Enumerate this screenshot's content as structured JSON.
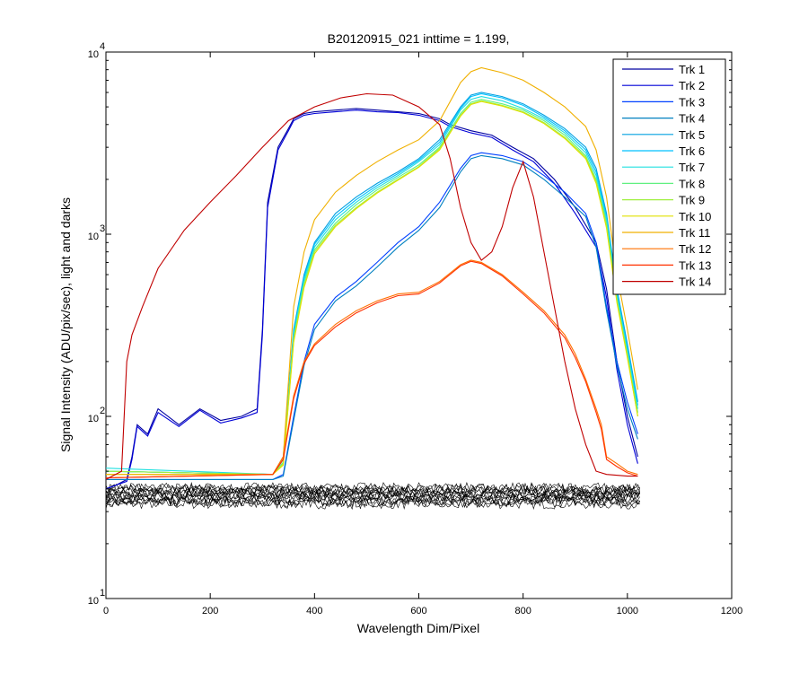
{
  "chart_data": {
    "type": "line",
    "title": "B20120915_021 inttime = 1.199,",
    "xlabel": "Wavelength Dim/Pixel",
    "ylabel": "Signal Intensity (ADU/pix/sec), light and darks",
    "xlim": [
      0,
      1200
    ],
    "ylim": [
      10,
      10000
    ],
    "yscale": "log",
    "grid": false,
    "legend_position": "top-right",
    "x_ticks": [
      "0",
      "200",
      "400",
      "600",
      "800",
      "1000",
      "1200"
    ],
    "y_ticks": [
      {
        "base": "10",
        "exp": "1"
      },
      {
        "base": "10",
        "exp": "2"
      },
      {
        "base": "10",
        "exp": "3"
      },
      {
        "base": "10",
        "exp": "4"
      }
    ],
    "series": [
      {
        "name": "Trk 1",
        "color": "#0000a0",
        "x": [
          0,
          20,
          40,
          50,
          60,
          80,
          100,
          140,
          180,
          220,
          260,
          290,
          300,
          310,
          330,
          350,
          360,
          380,
          400,
          440,
          480,
          520,
          560,
          600,
          640,
          660,
          700,
          740,
          780,
          820,
          860,
          900,
          940,
          960,
          980,
          1000,
          1020
        ],
        "y": [
          40,
          42,
          45,
          60,
          90,
          80,
          110,
          90,
          110,
          95,
          100,
          110,
          300,
          1500,
          3000,
          3800,
          4300,
          4600,
          4700,
          4800,
          4900,
          4800,
          4700,
          4600,
          4300,
          4000,
          3700,
          3500,
          3000,
          2600,
          2000,
          1400,
          900,
          500,
          200,
          100,
          60
        ]
      },
      {
        "name": "Trk 2",
        "color": "#0000d8",
        "x": [
          0,
          20,
          40,
          50,
          60,
          80,
          100,
          140,
          180,
          220,
          260,
          290,
          300,
          310,
          330,
          350,
          360,
          380,
          400,
          440,
          480,
          520,
          560,
          600,
          640,
          660,
          700,
          740,
          780,
          820,
          860,
          900,
          940,
          960,
          980,
          1000,
          1020
        ],
        "y": [
          40,
          42,
          44,
          58,
          88,
          78,
          105,
          88,
          108,
          92,
          98,
          105,
          280,
          1400,
          2900,
          3700,
          4200,
          4500,
          4600,
          4700,
          4800,
          4700,
          4650,
          4500,
          4200,
          3900,
          3600,
          3400,
          2900,
          2500,
          1900,
          1300,
          850,
          450,
          180,
          90,
          55
        ]
      },
      {
        "name": "Trk 3",
        "color": "#0040ff",
        "x": [
          0,
          320,
          340,
          360,
          380,
          400,
          440,
          480,
          520,
          560,
          600,
          640,
          680,
          700,
          720,
          760,
          800,
          840,
          880,
          920,
          940,
          960,
          980,
          1000,
          1020
        ],
        "y": [
          45,
          45,
          48,
          100,
          200,
          320,
          450,
          550,
          700,
          900,
          1100,
          1500,
          2300,
          2700,
          2800,
          2700,
          2500,
          2100,
          1700,
          1300,
          900,
          400,
          200,
          120,
          80
        ]
      },
      {
        "name": "Trk 4",
        "color": "#0080c0",
        "x": [
          0,
          320,
          340,
          360,
          380,
          400,
          440,
          480,
          520,
          560,
          600,
          640,
          680,
          700,
          720,
          760,
          800,
          840,
          880,
          920,
          940,
          960,
          980,
          1000,
          1020
        ],
        "y": [
          45,
          45,
          47,
          95,
          190,
          300,
          430,
          520,
          660,
          850,
          1050,
          1400,
          2200,
          2600,
          2700,
          2600,
          2400,
          2000,
          1600,
          1250,
          850,
          380,
          190,
          110,
          75
        ]
      },
      {
        "name": "Trk 5",
        "color": "#00a0e0",
        "x": [
          0,
          320,
          340,
          360,
          380,
          400,
          440,
          480,
          520,
          560,
          600,
          640,
          680,
          700,
          720,
          760,
          800,
          840,
          880,
          920,
          940,
          960,
          980,
          1000,
          1020
        ],
        "y": [
          50,
          48,
          60,
          300,
          600,
          900,
          1300,
          1600,
          1900,
          2200,
          2600,
          3300,
          5000,
          5800,
          6000,
          5700,
          5200,
          4500,
          3800,
          3000,
          2300,
          1300,
          500,
          250,
          120
        ]
      },
      {
        "name": "Trk 6",
        "color": "#00c0ff",
        "x": [
          0,
          320,
          340,
          360,
          380,
          400,
          440,
          480,
          520,
          560,
          600,
          640,
          680,
          700,
          720,
          760,
          800,
          840,
          880,
          920,
          940,
          960,
          980,
          1000,
          1020
        ],
        "y": [
          50,
          48,
          58,
          290,
          580,
          880,
          1250,
          1550,
          1850,
          2150,
          2550,
          3200,
          4900,
          5700,
          5900,
          5600,
          5100,
          4400,
          3700,
          2900,
          2200,
          1250,
          480,
          240,
          115
        ]
      },
      {
        "name": "Trk 7",
        "color": "#20e0e0",
        "x": [
          0,
          320,
          340,
          360,
          380,
          400,
          440,
          480,
          520,
          560,
          600,
          640,
          680,
          700,
          720,
          760,
          800,
          840,
          880,
          920,
          940,
          960,
          980,
          1000,
          1020
        ],
        "y": [
          52,
          48,
          58,
          280,
          560,
          850,
          1200,
          1500,
          1800,
          2100,
          2500,
          3100,
          4800,
          5500,
          5700,
          5400,
          4900,
          4300,
          3600,
          2800,
          2100,
          1200,
          460,
          230,
          110
        ]
      },
      {
        "name": "Trk 8",
        "color": "#60f080",
        "x": [
          0,
          320,
          340,
          360,
          380,
          400,
          440,
          480,
          520,
          560,
          600,
          640,
          680,
          700,
          720,
          760,
          800,
          840,
          880,
          920,
          940,
          960,
          980,
          1000,
          1020
        ],
        "y": [
          50,
          48,
          56,
          270,
          540,
          820,
          1150,
          1450,
          1750,
          2050,
          2400,
          3000,
          4600,
          5300,
          5500,
          5200,
          4800,
          4200,
          3500,
          2700,
          2000,
          1150,
          440,
          220,
          105
        ]
      },
      {
        "name": "Trk 9",
        "color": "#a0f040",
        "x": [
          0,
          320,
          340,
          360,
          380,
          400,
          440,
          480,
          520,
          560,
          600,
          640,
          680,
          700,
          720,
          760,
          800,
          840,
          880,
          920,
          940,
          960,
          980,
          1000,
          1020
        ],
        "y": [
          50,
          48,
          55,
          260,
          520,
          800,
          1120,
          1400,
          1700,
          2000,
          2350,
          2950,
          4500,
          5200,
          5400,
          5100,
          4700,
          4100,
          3400,
          2650,
          1950,
          1100,
          430,
          215,
          100
        ]
      },
      {
        "name": "Trk 10",
        "color": "#e0e000",
        "x": [
          0,
          320,
          340,
          360,
          380,
          400,
          440,
          480,
          520,
          560,
          600,
          640,
          680,
          700,
          720,
          760,
          800,
          840,
          880,
          920,
          940,
          960,
          980,
          1000,
          1020
        ],
        "y": [
          48,
          48,
          54,
          255,
          510,
          780,
          1100,
          1380,
          1680,
          1980,
          2330,
          2900,
          4450,
          5150,
          5350,
          5050,
          4650,
          4050,
          3350,
          2600,
          1900,
          1080,
          420,
          210,
          100
        ]
      },
      {
        "name": "Trk 11",
        "color": "#f0b000",
        "x": [
          0,
          320,
          340,
          360,
          380,
          400,
          440,
          480,
          520,
          560,
          600,
          640,
          680,
          700,
          720,
          760,
          800,
          840,
          880,
          920,
          940,
          960,
          980,
          1000,
          1020
        ],
        "y": [
          48,
          48,
          60,
          400,
          800,
          1200,
          1700,
          2100,
          2500,
          2900,
          3300,
          4200,
          6800,
          7800,
          8200,
          7700,
          7000,
          6000,
          5000,
          3900,
          2900,
          1600,
          600,
          300,
          140
        ]
      },
      {
        "name": "Trk 12",
        "color": "#ff7000",
        "x": [
          0,
          320,
          340,
          360,
          380,
          400,
          440,
          480,
          520,
          560,
          600,
          640,
          680,
          700,
          720,
          760,
          800,
          840,
          880,
          900,
          920,
          940,
          950,
          960,
          980,
          1000,
          1020
        ],
        "y": [
          46,
          48,
          60,
          130,
          200,
          250,
          320,
          380,
          430,
          470,
          480,
          550,
          680,
          720,
          700,
          600,
          480,
          380,
          280,
          220,
          160,
          110,
          90,
          60,
          55,
          50,
          48
        ]
      },
      {
        "name": "Trk 13",
        "color": "#ff3000",
        "x": [
          0,
          320,
          340,
          360,
          380,
          400,
          440,
          480,
          520,
          560,
          600,
          640,
          680,
          700,
          720,
          760,
          800,
          840,
          880,
          900,
          920,
          940,
          950,
          960,
          980,
          1000,
          1020
        ],
        "y": [
          46,
          48,
          58,
          125,
          195,
          245,
          310,
          370,
          420,
          460,
          470,
          540,
          670,
          710,
          690,
          590,
          470,
          370,
          270,
          210,
          155,
          105,
          85,
          58,
          53,
          49,
          47
        ]
      },
      {
        "name": "Trk 14",
        "color": "#c00000",
        "x": [
          0,
          30,
          40,
          50,
          70,
          100,
          150,
          200,
          250,
          300,
          350,
          400,
          450,
          500,
          550,
          600,
          640,
          660,
          680,
          700,
          720,
          740,
          760,
          780,
          800,
          820,
          840,
          860,
          880,
          900,
          920,
          940,
          960,
          1000,
          1020
        ],
        "y": [
          45,
          50,
          200,
          280,
          400,
          650,
          1050,
          1500,
          2100,
          3000,
          4200,
          5000,
          5600,
          5900,
          5800,
          5000,
          4000,
          2600,
          1400,
          900,
          720,
          800,
          1100,
          1800,
          2500,
          1600,
          800,
          400,
          200,
          110,
          70,
          50,
          48,
          47,
          47
        ]
      }
    ]
  }
}
